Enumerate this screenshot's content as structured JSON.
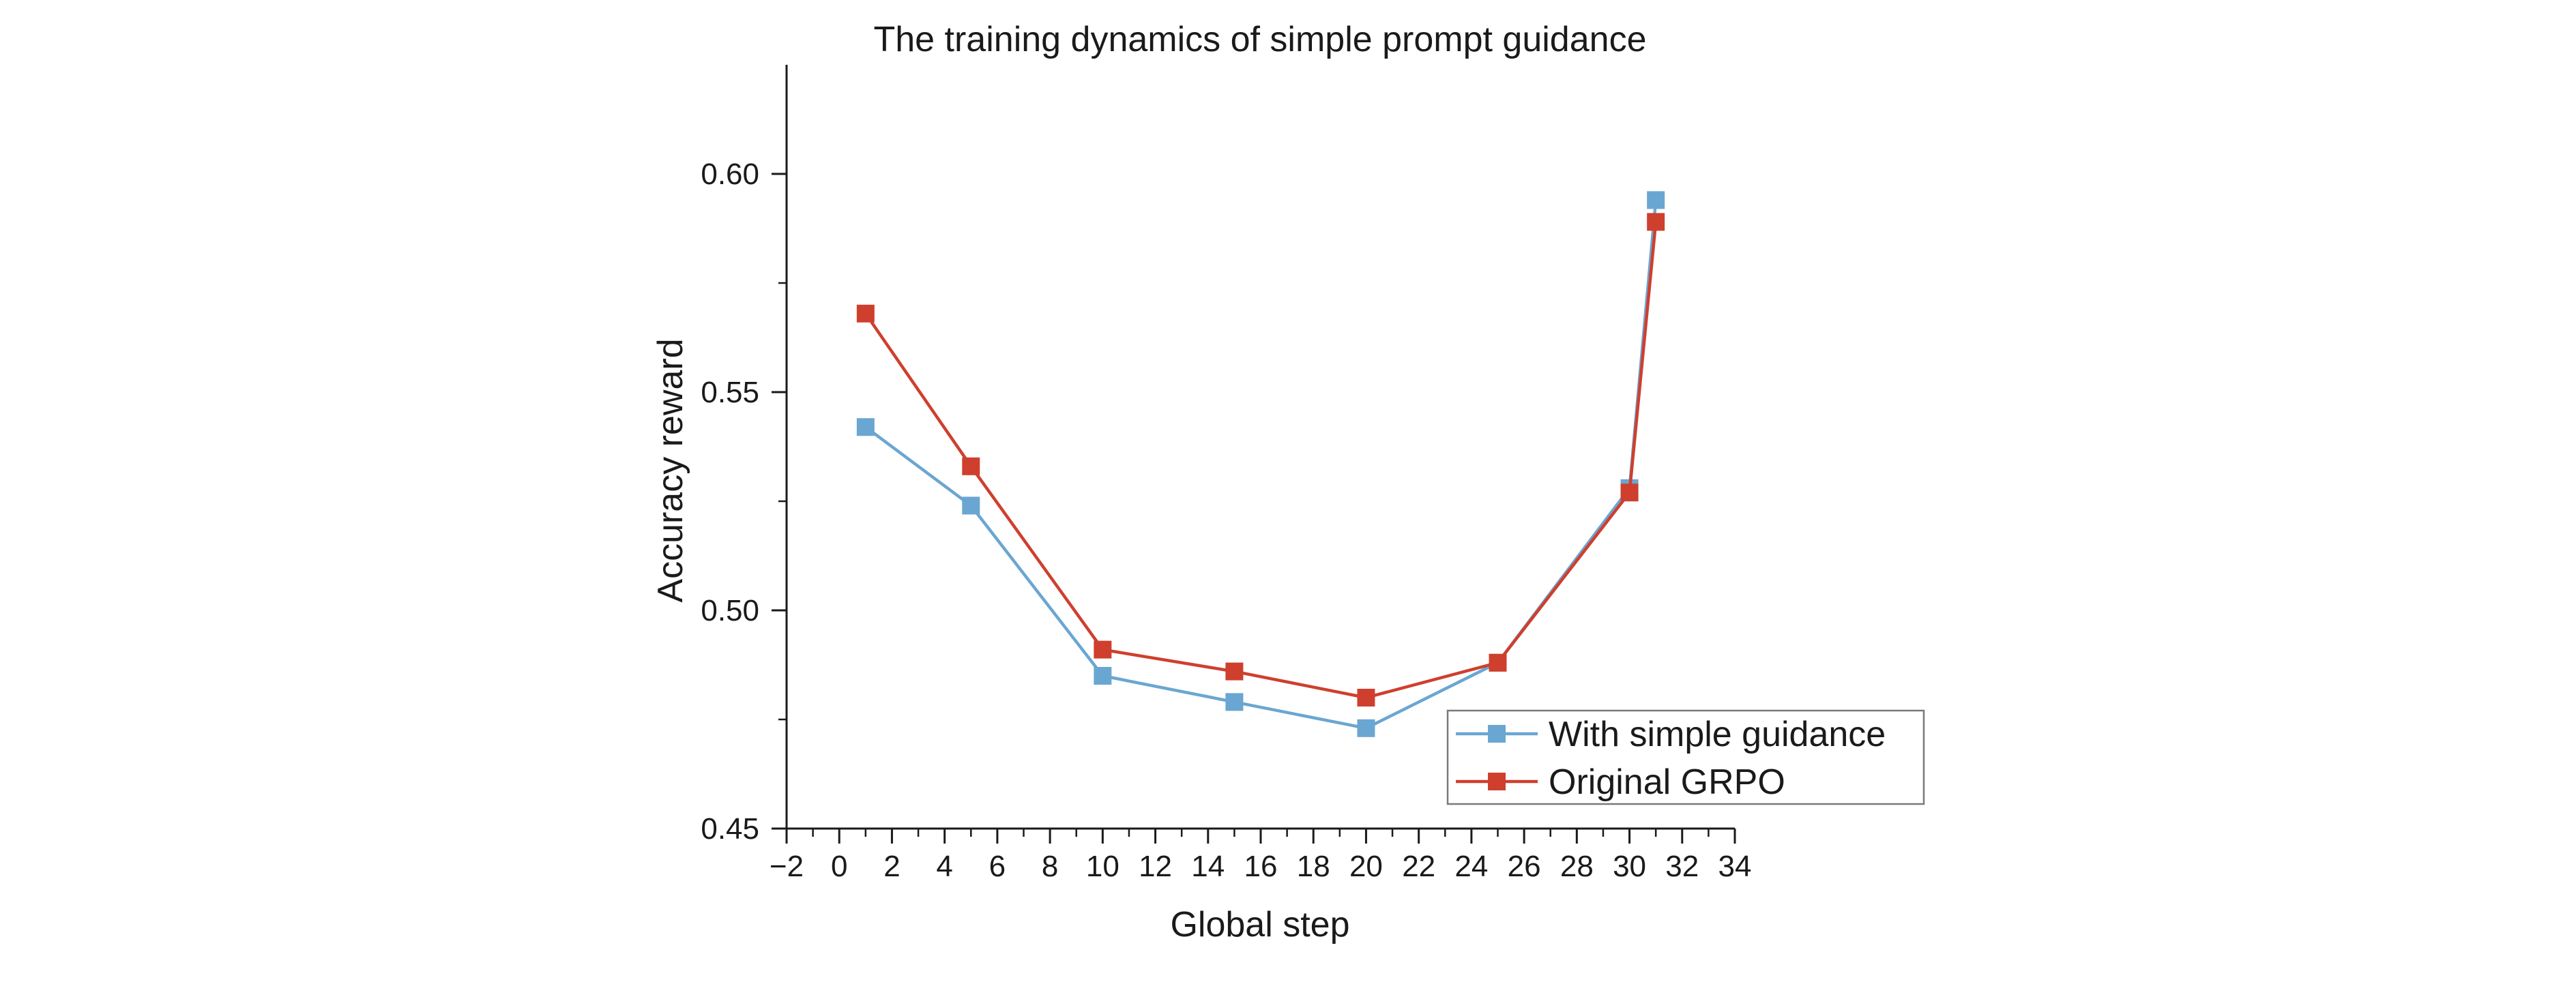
{
  "chart_data": {
    "type": "line",
    "title": "The training dynamics of simple prompt guidance",
    "xlabel": "Global step",
    "ylabel": "Accuracy reward",
    "xlim": [
      -2,
      34
    ],
    "ylim": [
      0.45,
      0.625
    ],
    "x_ticks": [
      -2,
      0,
      2,
      4,
      6,
      8,
      10,
      12,
      14,
      16,
      18,
      20,
      22,
      24,
      26,
      28,
      30,
      32,
      34
    ],
    "x_tick_labels": [
      "−2",
      "0",
      "2",
      "4",
      "6",
      "8",
      "10",
      "12",
      "14",
      "16",
      "18",
      "20",
      "22",
      "24",
      "26",
      "28",
      "30",
      "32",
      "34"
    ],
    "y_ticks": [
      0.45,
      0.5,
      0.55,
      0.6
    ],
    "y_tick_labels": [
      "0.45",
      "0.50",
      "0.55",
      "0.60"
    ],
    "grid": false,
    "legend_position": "bottom-right",
    "series": [
      {
        "name": "With simple guidance",
        "color": "#6aa6d2",
        "marker": "square",
        "x": [
          1,
          5,
          10,
          15,
          20,
          25,
          30,
          31
        ],
        "y": [
          0.542,
          0.524,
          0.485,
          0.479,
          0.473,
          0.488,
          0.528,
          0.594
        ]
      },
      {
        "name": "Original GRPO",
        "color": "#cf3f2e",
        "marker": "square",
        "x": [
          1,
          5,
          10,
          15,
          20,
          25,
          30,
          31
        ],
        "y": [
          0.568,
          0.533,
          0.491,
          0.486,
          0.48,
          0.488,
          0.527,
          0.589
        ]
      }
    ]
  }
}
